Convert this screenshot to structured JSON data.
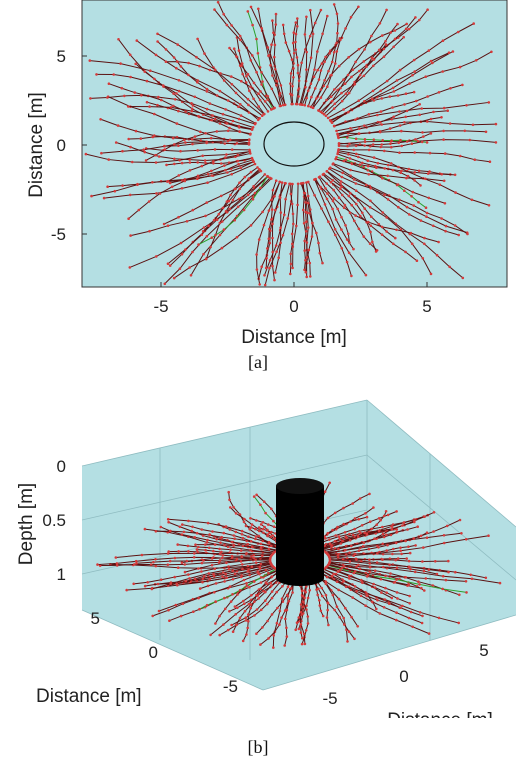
{
  "captions": {
    "a": "[a]",
    "b": "[b]"
  },
  "colors": {
    "background": "#b4dfe3",
    "root_line": "#5a1212",
    "node": "#d43a3a",
    "highlight": "#2aa02a",
    "trunk": "#000000"
  },
  "chart_data": [
    {
      "type": "scatter",
      "title": "",
      "xlabel": "Distance [m]",
      "ylabel": "Distance [m]",
      "xlim": [
        -8,
        8
      ],
      "ylim": [
        -8,
        8
      ],
      "xticks": [
        -5,
        0,
        5
      ],
      "yticks": [
        5,
        0,
        -5
      ],
      "grid": false,
      "trunk_circle": {
        "center": [
          0,
          0
        ],
        "radius_x": 1.15,
        "radius_y": 0.9
      },
      "description": "root branches radiating outward from the trunk circle"
    },
    {
      "type": "scatter",
      "title": "",
      "xlabel": "Distance [m]",
      "ylabel": "Distance [m]",
      "zlabel": "Depth [m]",
      "zticks": [
        "0",
        "0.5",
        "1"
      ],
      "yticks": [
        "5",
        "0",
        "-5"
      ],
      "xticks": [
        "-5",
        "0",
        "5"
      ],
      "grid": true,
      "trunk": "black cylinder at origin"
    }
  ]
}
